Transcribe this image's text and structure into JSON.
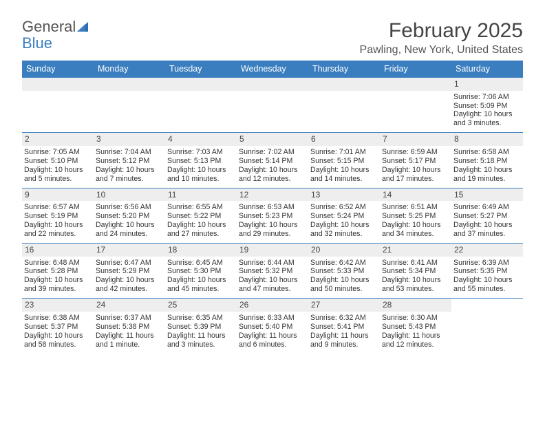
{
  "logo": {
    "text1": "General",
    "text2": "Blue"
  },
  "title": "February 2025",
  "location": "Pawling, New York, United States",
  "colors": {
    "accent": "#3a7ebf",
    "header_text": "#ffffff",
    "num_bar_bg": "#eeeeee",
    "body_text": "#333333"
  },
  "weekdays": [
    "Sunday",
    "Monday",
    "Tuesday",
    "Wednesday",
    "Thursday",
    "Friday",
    "Saturday"
  ],
  "weeks": [
    [
      null,
      null,
      null,
      null,
      null,
      null,
      {
        "n": "1",
        "sr": "Sunrise: 7:06 AM",
        "ss": "Sunset: 5:09 PM",
        "d1": "Daylight: 10 hours",
        "d2": "and 3 minutes."
      }
    ],
    [
      {
        "n": "2",
        "sr": "Sunrise: 7:05 AM",
        "ss": "Sunset: 5:10 PM",
        "d1": "Daylight: 10 hours",
        "d2": "and 5 minutes."
      },
      {
        "n": "3",
        "sr": "Sunrise: 7:04 AM",
        "ss": "Sunset: 5:12 PM",
        "d1": "Daylight: 10 hours",
        "d2": "and 7 minutes."
      },
      {
        "n": "4",
        "sr": "Sunrise: 7:03 AM",
        "ss": "Sunset: 5:13 PM",
        "d1": "Daylight: 10 hours",
        "d2": "and 10 minutes."
      },
      {
        "n": "5",
        "sr": "Sunrise: 7:02 AM",
        "ss": "Sunset: 5:14 PM",
        "d1": "Daylight: 10 hours",
        "d2": "and 12 minutes."
      },
      {
        "n": "6",
        "sr": "Sunrise: 7:01 AM",
        "ss": "Sunset: 5:15 PM",
        "d1": "Daylight: 10 hours",
        "d2": "and 14 minutes."
      },
      {
        "n": "7",
        "sr": "Sunrise: 6:59 AM",
        "ss": "Sunset: 5:17 PM",
        "d1": "Daylight: 10 hours",
        "d2": "and 17 minutes."
      },
      {
        "n": "8",
        "sr": "Sunrise: 6:58 AM",
        "ss": "Sunset: 5:18 PM",
        "d1": "Daylight: 10 hours",
        "d2": "and 19 minutes."
      }
    ],
    [
      {
        "n": "9",
        "sr": "Sunrise: 6:57 AM",
        "ss": "Sunset: 5:19 PM",
        "d1": "Daylight: 10 hours",
        "d2": "and 22 minutes."
      },
      {
        "n": "10",
        "sr": "Sunrise: 6:56 AM",
        "ss": "Sunset: 5:20 PM",
        "d1": "Daylight: 10 hours",
        "d2": "and 24 minutes."
      },
      {
        "n": "11",
        "sr": "Sunrise: 6:55 AM",
        "ss": "Sunset: 5:22 PM",
        "d1": "Daylight: 10 hours",
        "d2": "and 27 minutes."
      },
      {
        "n": "12",
        "sr": "Sunrise: 6:53 AM",
        "ss": "Sunset: 5:23 PM",
        "d1": "Daylight: 10 hours",
        "d2": "and 29 minutes."
      },
      {
        "n": "13",
        "sr": "Sunrise: 6:52 AM",
        "ss": "Sunset: 5:24 PM",
        "d1": "Daylight: 10 hours",
        "d2": "and 32 minutes."
      },
      {
        "n": "14",
        "sr": "Sunrise: 6:51 AM",
        "ss": "Sunset: 5:25 PM",
        "d1": "Daylight: 10 hours",
        "d2": "and 34 minutes."
      },
      {
        "n": "15",
        "sr": "Sunrise: 6:49 AM",
        "ss": "Sunset: 5:27 PM",
        "d1": "Daylight: 10 hours",
        "d2": "and 37 minutes."
      }
    ],
    [
      {
        "n": "16",
        "sr": "Sunrise: 6:48 AM",
        "ss": "Sunset: 5:28 PM",
        "d1": "Daylight: 10 hours",
        "d2": "and 39 minutes."
      },
      {
        "n": "17",
        "sr": "Sunrise: 6:47 AM",
        "ss": "Sunset: 5:29 PM",
        "d1": "Daylight: 10 hours",
        "d2": "and 42 minutes."
      },
      {
        "n": "18",
        "sr": "Sunrise: 6:45 AM",
        "ss": "Sunset: 5:30 PM",
        "d1": "Daylight: 10 hours",
        "d2": "and 45 minutes."
      },
      {
        "n": "19",
        "sr": "Sunrise: 6:44 AM",
        "ss": "Sunset: 5:32 PM",
        "d1": "Daylight: 10 hours",
        "d2": "and 47 minutes."
      },
      {
        "n": "20",
        "sr": "Sunrise: 6:42 AM",
        "ss": "Sunset: 5:33 PM",
        "d1": "Daylight: 10 hours",
        "d2": "and 50 minutes."
      },
      {
        "n": "21",
        "sr": "Sunrise: 6:41 AM",
        "ss": "Sunset: 5:34 PM",
        "d1": "Daylight: 10 hours",
        "d2": "and 53 minutes."
      },
      {
        "n": "22",
        "sr": "Sunrise: 6:39 AM",
        "ss": "Sunset: 5:35 PM",
        "d1": "Daylight: 10 hours",
        "d2": "and 55 minutes."
      }
    ],
    [
      {
        "n": "23",
        "sr": "Sunrise: 6:38 AM",
        "ss": "Sunset: 5:37 PM",
        "d1": "Daylight: 10 hours",
        "d2": "and 58 minutes."
      },
      {
        "n": "24",
        "sr": "Sunrise: 6:37 AM",
        "ss": "Sunset: 5:38 PM",
        "d1": "Daylight: 11 hours",
        "d2": "and 1 minute."
      },
      {
        "n": "25",
        "sr": "Sunrise: 6:35 AM",
        "ss": "Sunset: 5:39 PM",
        "d1": "Daylight: 11 hours",
        "d2": "and 3 minutes."
      },
      {
        "n": "26",
        "sr": "Sunrise: 6:33 AM",
        "ss": "Sunset: 5:40 PM",
        "d1": "Daylight: 11 hours",
        "d2": "and 6 minutes."
      },
      {
        "n": "27",
        "sr": "Sunrise: 6:32 AM",
        "ss": "Sunset: 5:41 PM",
        "d1": "Daylight: 11 hours",
        "d2": "and 9 minutes."
      },
      {
        "n": "28",
        "sr": "Sunrise: 6:30 AM",
        "ss": "Sunset: 5:43 PM",
        "d1": "Daylight: 11 hours",
        "d2": "and 12 minutes."
      },
      null
    ]
  ]
}
